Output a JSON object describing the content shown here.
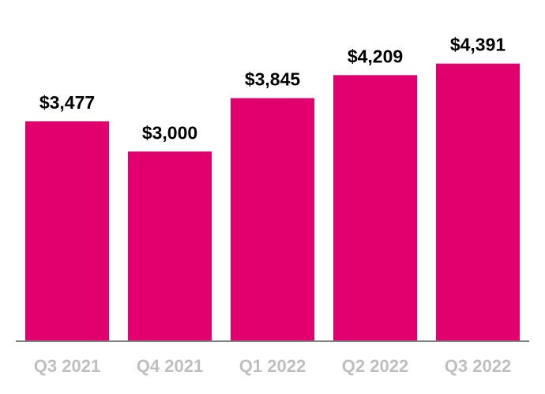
{
  "chart_data": {
    "type": "bar",
    "categories": [
      "Q3 2021",
      "Q4 2021",
      "Q1 2022",
      "Q2 2022",
      "Q3 2022"
    ],
    "values": [
      3477,
      3000,
      3845,
      4209,
      4391
    ],
    "value_labels": [
      "$3,477",
      "$3,000",
      "$3,845",
      "$4,209",
      "$4,391"
    ],
    "title": "",
    "xlabel": "",
    "ylabel": "",
    "ylim": [
      0,
      4400
    ],
    "grid": false,
    "legend": "none",
    "colors": {
      "bar": "#e2006f",
      "axis": "#808080",
      "tick_label": "#bfbfbf",
      "value_label": "#000000"
    }
  }
}
